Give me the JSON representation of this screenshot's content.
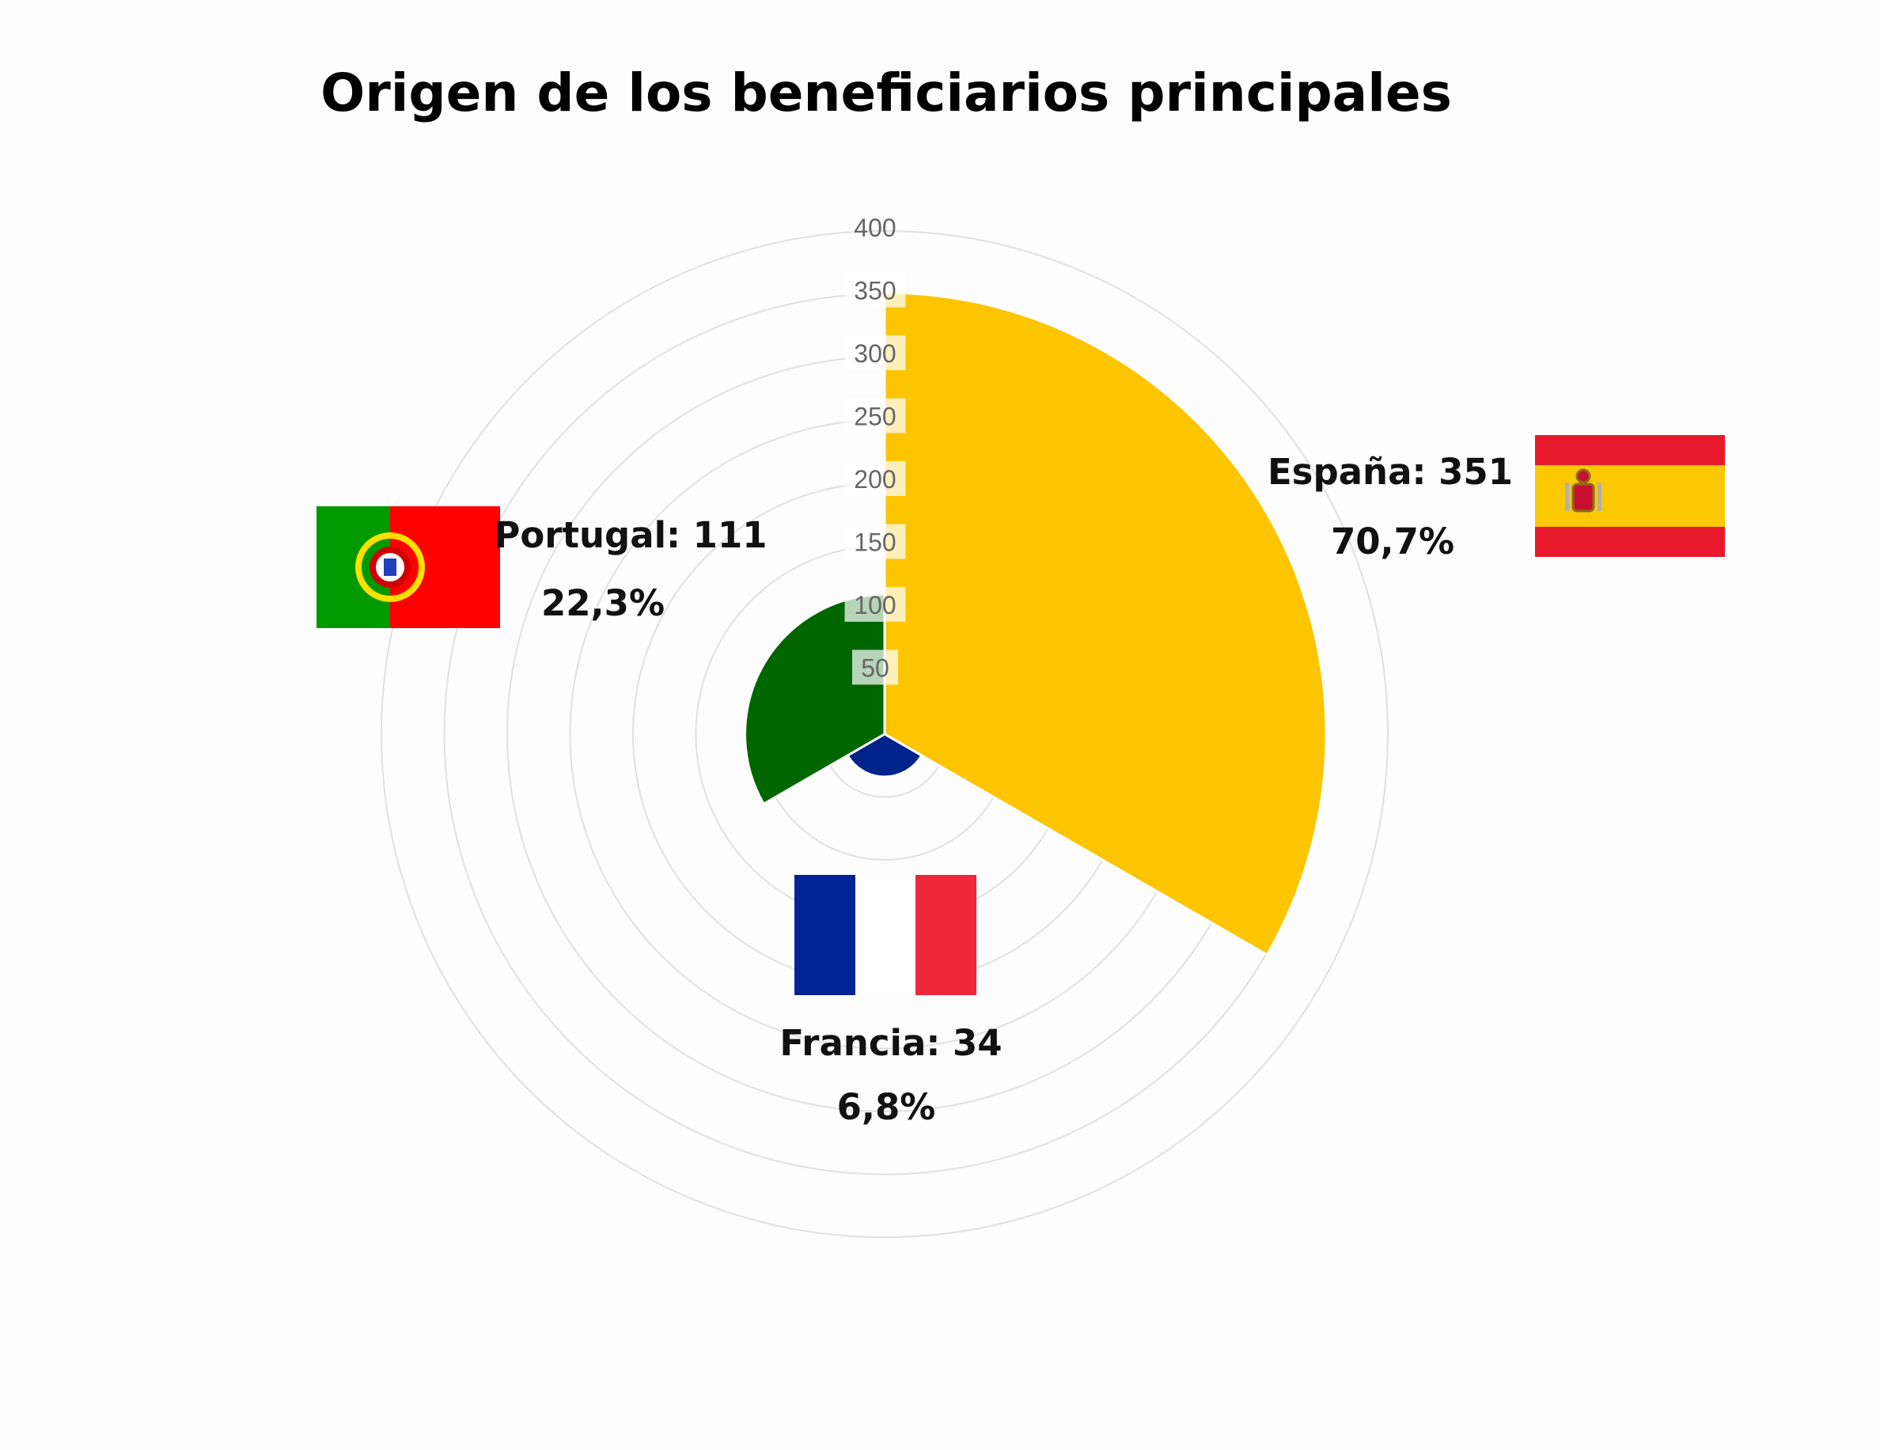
{
  "chart_data": {
    "type": "polar-bar",
    "title": "Origen de los beneficiarios principales",
    "r_ticks": [
      "50",
      "100",
      "150",
      "200",
      "250",
      "300",
      "350",
      "400"
    ],
    "r_max": 400,
    "grid": true,
    "categories": [
      "España",
      "Francia",
      "Portugal"
    ],
    "values": [
      351,
      34,
      111
    ],
    "percent_labels": [
      "70,7%",
      "6,8%",
      "22,3%"
    ],
    "value_labels": [
      "España: 351",
      "Francia: 34",
      "Portugal: 111"
    ],
    "colors": [
      "#fdc400",
      "#00248a",
      "#006600"
    ],
    "flags": [
      "spain-flag",
      "france-flag",
      "portugal-flag"
    ]
  }
}
